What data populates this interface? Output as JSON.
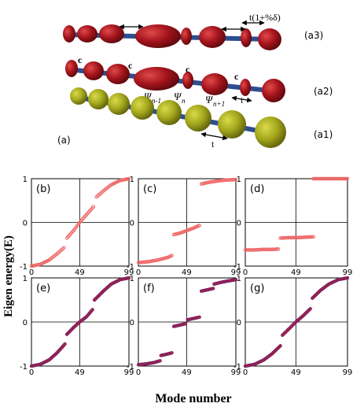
{
  "schematic": {
    "panel_label": "(a)",
    "row_labels": [
      "(a3)",
      "(a2)",
      "(a1)"
    ],
    "hopping_label": "t(1+%δ)",
    "coupling_label": "c",
    "site_labels": [
      "Ψ",
      "n-1",
      "Ψ",
      "n",
      "Ψ",
      "n+1"
    ],
    "t_label": "t",
    "colors": {
      "red_site": "#a3131b",
      "yellow_site": "#a3a51c",
      "bond": "#2c4e8f"
    }
  },
  "axes_text": {
    "ylabel": "Eigen energy(E)",
    "xlabel": "Mode number"
  },
  "chart_data": [
    {
      "panel": "(b)",
      "type": "scatter",
      "marker": "open",
      "color": "#ef6a6a",
      "xlim": [
        0,
        99
      ],
      "ylim": [
        -1,
        1
      ],
      "xticks": [
        "0",
        "49",
        "99"
      ],
      "yticks": [
        "-1",
        "0",
        "1"
      ],
      "segments": [
        {
          "x": [
            0,
            9,
            18,
            26,
            33
          ],
          "y": [
            -1.0,
            -0.96,
            -0.86,
            -0.72,
            -0.58
          ]
        },
        {
          "x": [
            36,
            43,
            49,
            56,
            63
          ],
          "y": [
            -0.36,
            -0.18,
            0.0,
            0.18,
            0.36
          ]
        },
        {
          "x": [
            66,
            73,
            81,
            90,
            99
          ],
          "y": [
            0.58,
            0.72,
            0.86,
            0.96,
            1.0
          ]
        }
      ]
    },
    {
      "panel": "(c)",
      "type": "scatter",
      "marker": "open",
      "color": "#ef6a6a",
      "xlim": [
        0,
        99
      ],
      "ylim": [
        -1,
        1
      ],
      "xticks": [
        "0",
        "49",
        "99"
      ],
      "yticks": [
        "-1",
        "0",
        "1"
      ],
      "segments": [
        {
          "x": [
            0,
            10,
            20,
            30,
            34
          ],
          "y": [
            -0.92,
            -0.9,
            -0.86,
            -0.8,
            -0.76
          ]
        },
        {
          "x": [
            36,
            43,
            49,
            56,
            62
          ],
          "y": [
            -0.28,
            -0.24,
            -0.19,
            -0.13,
            -0.07
          ]
        },
        {
          "x": [
            64,
            72,
            81,
            90,
            99
          ],
          "y": [
            0.88,
            0.92,
            0.95,
            0.97,
            0.98
          ]
        }
      ]
    },
    {
      "panel": "(d)",
      "type": "scatter",
      "marker": "open",
      "color": "#ef6a6a",
      "xlim": [
        0,
        99
      ],
      "ylim": [
        -1,
        1
      ],
      "xticks": [
        "0",
        "49",
        "99"
      ],
      "yticks": [
        "-1",
        "0",
        "1"
      ],
      "segments": [
        {
          "x": [
            0,
            8,
            16,
            24,
            32
          ],
          "y": [
            -0.63,
            -0.63,
            -0.62,
            -0.62,
            -0.61
          ]
        },
        {
          "x": [
            34,
            42,
            50,
            58,
            66
          ],
          "y": [
            -0.36,
            -0.35,
            -0.35,
            -0.34,
            -0.33
          ]
        },
        {
          "x": [
            66,
            74,
            82,
            90,
            99
          ],
          "y": [
            1.0,
            1.0,
            1.0,
            1.0,
            1.0
          ]
        }
      ]
    },
    {
      "panel": "(e)",
      "type": "scatter",
      "marker": "filled",
      "color": "#a8244a",
      "xlim": [
        0,
        99
      ],
      "ylim": [
        -1,
        1
      ],
      "xticks": [
        "0",
        "49",
        "99"
      ],
      "yticks": [
        "-1",
        "0",
        "1"
      ],
      "segments": [
        {
          "x": [
            0,
            9,
            18,
            26,
            34
          ],
          "y": [
            -1.0,
            -0.96,
            -0.86,
            -0.7,
            -0.5
          ]
        },
        {
          "x": [
            36,
            43,
            49,
            56,
            62
          ],
          "y": [
            -0.28,
            -0.12,
            0.0,
            0.12,
            0.28
          ]
        },
        {
          "x": [
            64,
            73,
            81,
            90,
            99
          ],
          "y": [
            0.5,
            0.7,
            0.86,
            0.96,
            1.0
          ]
        }
      ]
    },
    {
      "panel": "(f)",
      "type": "scatter",
      "marker": "filled",
      "color": "#a8244a",
      "xlim": [
        0,
        99
      ],
      "ylim": [
        -1,
        1
      ],
      "xticks": [
        "0",
        "49",
        "99"
      ],
      "yticks": [
        "-1",
        "0",
        "1"
      ],
      "segments": [
        {
          "x": [
            0,
            8,
            16,
            22
          ],
          "y": [
            -0.97,
            -0.95,
            -0.92,
            -0.88
          ]
        },
        {
          "x": [
            23,
            29,
            34
          ],
          "y": [
            -0.76,
            -0.73,
            -0.7
          ]
        },
        {
          "x": [
            36,
            42,
            48
          ],
          "y": [
            -0.1,
            -0.07,
            -0.04
          ]
        },
        {
          "x": [
            50,
            56,
            62
          ],
          "y": [
            0.05,
            0.08,
            0.11
          ]
        },
        {
          "x": [
            64,
            70,
            76
          ],
          "y": [
            0.7,
            0.73,
            0.76
          ]
        },
        {
          "x": [
            77,
            84,
            91,
            99
          ],
          "y": [
            0.86,
            0.9,
            0.93,
            0.96
          ]
        }
      ]
    },
    {
      "panel": "(g)",
      "type": "scatter",
      "marker": "filled",
      "color": "#a8244a",
      "xlim": [
        0,
        99
      ],
      "ylim": [
        -1,
        1
      ],
      "xticks": [
        "0",
        "49",
        "99"
      ],
      "yticks": [
        "-1",
        "0",
        "1"
      ],
      "segments": [
        {
          "x": [
            0,
            9,
            18,
            26,
            34
          ],
          "y": [
            -1.0,
            -0.96,
            -0.86,
            -0.72,
            -0.54
          ]
        },
        {
          "x": [
            36,
            43,
            49,
            56,
            63
          ],
          "y": [
            -0.3,
            -0.14,
            0.0,
            0.14,
            0.3
          ]
        },
        {
          "x": [
            65,
            73,
            81,
            90,
            99
          ],
          "y": [
            0.54,
            0.72,
            0.86,
            0.96,
            1.0
          ]
        }
      ]
    }
  ]
}
